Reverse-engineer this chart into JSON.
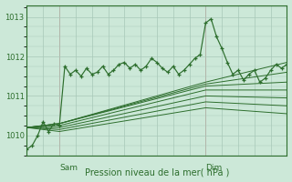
{
  "bg_color": "#cce8d8",
  "grid_color": "#a8c8b8",
  "line_color": "#2d6e2d",
  "figsize": [
    3.2,
    2.0
  ],
  "dpi": 100,
  "ylim": [
    1009.5,
    1013.3
  ],
  "xlim": [
    0,
    48
  ],
  "yticks": [
    1010,
    1011,
    1012,
    1013
  ],
  "ytick_fontsize": 6,
  "sam_x": 6,
  "dim_x": 33,
  "xlabel": "Pression niveau de la mer( hPa )",
  "xlabel_fontsize": 7,
  "wavy_line_x": [
    0,
    1,
    2,
    3,
    4,
    5,
    6,
    7,
    8,
    9,
    10,
    11,
    12,
    13,
    14,
    15,
    16,
    17,
    18,
    19,
    20,
    21,
    22,
    23,
    24,
    25,
    26,
    27,
    28,
    29,
    30,
    31,
    32,
    33,
    34,
    35,
    36,
    37,
    38,
    39,
    40,
    41,
    42,
    43,
    44,
    45,
    46,
    47,
    48
  ],
  "wavy_line_y": [
    1009.65,
    1009.75,
    1010.0,
    1010.35,
    1010.1,
    1010.3,
    1010.25,
    1011.75,
    1011.55,
    1011.65,
    1011.5,
    1011.7,
    1011.55,
    1011.6,
    1011.75,
    1011.55,
    1011.65,
    1011.8,
    1011.85,
    1011.7,
    1011.8,
    1011.65,
    1011.75,
    1011.95,
    1011.85,
    1011.7,
    1011.6,
    1011.75,
    1011.55,
    1011.65,
    1011.8,
    1011.95,
    1012.05,
    1012.85,
    1012.95,
    1012.5,
    1012.2,
    1011.85,
    1011.55,
    1011.65,
    1011.4,
    1011.55,
    1011.65,
    1011.35,
    1011.45,
    1011.65,
    1011.8,
    1011.7,
    1011.8
  ],
  "fan_lines": [
    {
      "x": [
        0,
        6,
        33,
        48
      ],
      "y": [
        1010.2,
        1010.3,
        1011.35,
        1011.85
      ]
    },
    {
      "x": [
        0,
        6,
        33,
        48
      ],
      "y": [
        1010.2,
        1010.3,
        1011.3,
        1011.6
      ]
    },
    {
      "x": [
        0,
        6,
        33,
        48
      ],
      "y": [
        1010.2,
        1010.3,
        1011.25,
        1011.35
      ]
    },
    {
      "x": [
        0,
        6,
        33,
        48
      ],
      "y": [
        1010.2,
        1010.25,
        1011.15,
        1011.15
      ]
    },
    {
      "x": [
        0,
        6,
        33,
        48
      ],
      "y": [
        1010.2,
        1010.2,
        1011.0,
        1010.95
      ]
    },
    {
      "x": [
        0,
        6,
        33,
        48
      ],
      "y": [
        1010.2,
        1010.15,
        1010.85,
        1010.75
      ]
    },
    {
      "x": [
        0,
        6,
        33,
        48
      ],
      "y": [
        1010.2,
        1010.1,
        1010.7,
        1010.55
      ]
    }
  ]
}
